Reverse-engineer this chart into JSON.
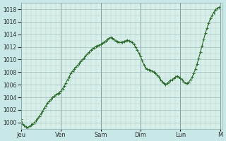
{
  "background_color": "#c8e8e8",
  "plot_bg_color": "#d8eee8",
  "line_color": "#2d6e2d",
  "marker_color": "#2d6e2d",
  "ylim": [
    999,
    1019
  ],
  "yticks": [
    1000,
    1002,
    1004,
    1006,
    1008,
    1010,
    1012,
    1014,
    1016,
    1018
  ],
  "day_labels": [
    "Jeu",
    "Ven",
    "Sam",
    "Dim",
    "Lun",
    "M"
  ],
  "day_positions": [
    0,
    24,
    48,
    72,
    96,
    120
  ],
  "y": [
    1000.5,
    999.8,
    999.5,
    999.3,
    999.2,
    999.4,
    999.6,
    999.8,
    1000.0,
    1000.3,
    1000.6,
    1001.0,
    1001.4,
    1001.8,
    1002.3,
    1002.7,
    1003.1,
    1003.4,
    1003.7,
    1004.0,
    1004.2,
    1004.4,
    1004.6,
    1004.7,
    1005.0,
    1005.4,
    1005.8,
    1006.3,
    1006.8,
    1007.3,
    1007.8,
    1008.2,
    1008.5,
    1008.8,
    1009.1,
    1009.4,
    1009.7,
    1010.0,
    1010.3,
    1010.6,
    1010.9,
    1011.2,
    1011.5,
    1011.7,
    1011.9,
    1012.1,
    1012.2,
    1012.3,
    1012.4,
    1012.6,
    1012.8,
    1013.0,
    1013.2,
    1013.4,
    1013.5,
    1013.4,
    1013.2,
    1013.0,
    1012.9,
    1012.8,
    1012.7,
    1012.8,
    1012.9,
    1013.0,
    1013.1,
    1013.0,
    1012.9,
    1012.7,
    1012.4,
    1012.0,
    1011.5,
    1011.0,
    1010.5,
    1009.8,
    1009.2,
    1008.7,
    1008.5,
    1008.4,
    1008.3,
    1008.2,
    1008.0,
    1007.8,
    1007.5,
    1007.2,
    1006.8,
    1006.5,
    1006.2,
    1006.0,
    1006.2,
    1006.5,
    1006.7,
    1006.8,
    1007.0,
    1007.2,
    1007.4,
    1007.2,
    1007.0,
    1006.8,
    1006.5,
    1006.3,
    1006.2,
    1006.4,
    1006.8,
    1007.2,
    1007.8,
    1008.5,
    1009.3,
    1010.2,
    1011.2,
    1012.2,
    1013.2,
    1014.2,
    1015.0,
    1015.8,
    1016.5,
    1017.0,
    1017.5,
    1017.9,
    1018.1,
    1018.3
  ]
}
